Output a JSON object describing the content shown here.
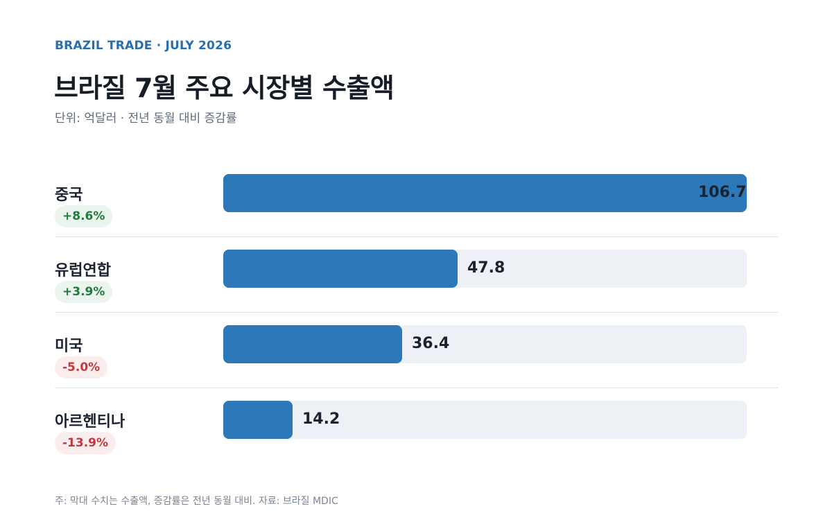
{
  "header": {
    "eyebrow": "BRAZIL TRADE · JULY 2026",
    "title": "브라질 7월 주요 시장별 수출액",
    "subtitle": "단위: 억달러 · 전년 동월 대비 증감률"
  },
  "chart_data": {
    "type": "bar",
    "orientation": "horizontal",
    "categories": [
      "중국",
      "유럽연합",
      "미국",
      "아르헨티나"
    ],
    "values": [
      106.7,
      47.8,
      36.4,
      14.2
    ],
    "value_labels": [
      "106.7",
      "47.8",
      "36.4",
      "14.2"
    ],
    "changes": [
      "+8.6%",
      "+3.9%",
      "-5.0%",
      "-13.9%"
    ],
    "change_direction": [
      "up",
      "up",
      "down",
      "down"
    ],
    "xlim": [
      0,
      106.7
    ],
    "grid": false,
    "colors": {
      "bar": "#2d78b8",
      "track": "#edf1f6",
      "up_text": "#217a3f",
      "up_bg": "#ebf5ee",
      "down_text": "#bf3a3d",
      "down_bg": "#fbeced"
    }
  },
  "footnote": "주: 막대 수치는 수출액, 증감률은 전년 동월 대비. 자료: 브라질 MDIC"
}
